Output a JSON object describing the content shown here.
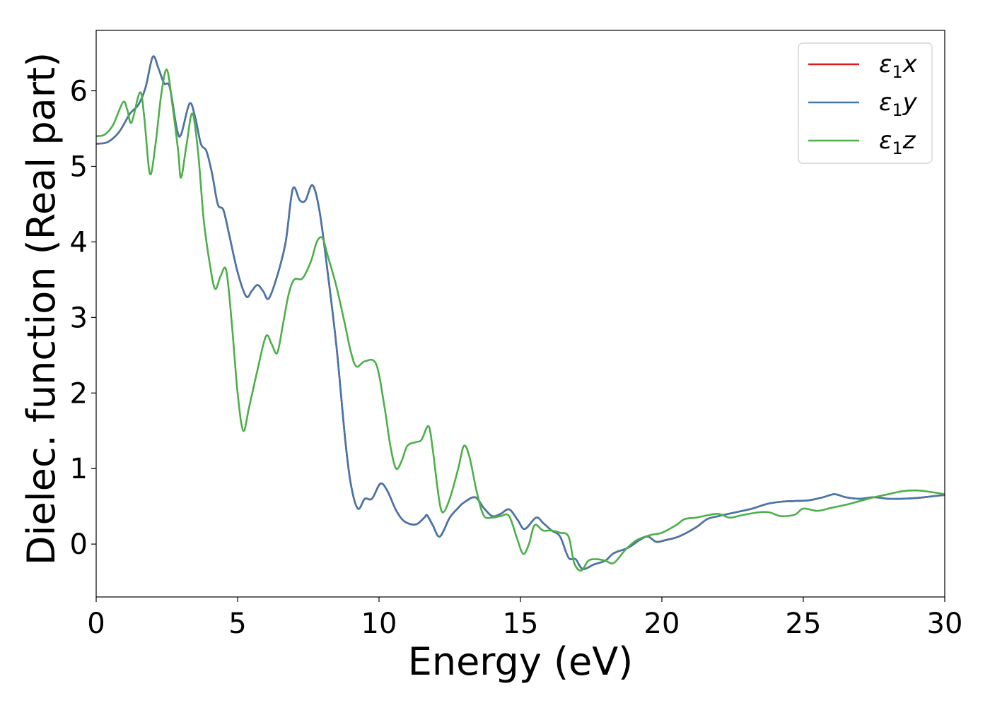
{
  "chart_data": {
    "type": "line",
    "title": "",
    "xlabel": "Energy (eV)",
    "ylabel": "Dielec. function (Real part)",
    "xlim": [
      0,
      30
    ],
    "ylim": [
      -0.7,
      6.8
    ],
    "xticks": [
      0,
      5,
      10,
      15,
      20,
      25,
      30
    ],
    "yticks": [
      0,
      1,
      2,
      3,
      4,
      5,
      6
    ],
    "grid": false,
    "legend_position": "top-right",
    "series": [
      {
        "name": "ε1x",
        "legend_base": "ε",
        "legend_sub": "1",
        "legend_var": "x",
        "color": "#e41a1c",
        "points": [
          [
            0,
            5.3
          ],
          [
            0.4,
            5.32
          ],
          [
            0.8,
            5.45
          ],
          [
            1.2,
            5.7
          ],
          [
            1.5,
            5.82
          ],
          [
            1.75,
            6.05
          ],
          [
            2.0,
            6.45
          ],
          [
            2.2,
            6.3
          ],
          [
            2.4,
            6.1
          ],
          [
            2.6,
            6.05
          ],
          [
            2.85,
            5.5
          ],
          [
            3.0,
            5.42
          ],
          [
            3.3,
            5.83
          ],
          [
            3.5,
            5.65
          ],
          [
            3.7,
            5.3
          ],
          [
            3.9,
            5.2
          ],
          [
            4.1,
            4.9
          ],
          [
            4.3,
            4.5
          ],
          [
            4.5,
            4.42
          ],
          [
            4.7,
            4.1
          ],
          [
            5.0,
            3.6
          ],
          [
            5.3,
            3.28
          ],
          [
            5.5,
            3.35
          ],
          [
            5.7,
            3.43
          ],
          [
            5.9,
            3.35
          ],
          [
            6.1,
            3.25
          ],
          [
            6.4,
            3.55
          ],
          [
            6.7,
            4.0
          ],
          [
            6.95,
            4.7
          ],
          [
            7.2,
            4.55
          ],
          [
            7.4,
            4.55
          ],
          [
            7.65,
            4.75
          ],
          [
            7.9,
            4.4
          ],
          [
            8.2,
            3.55
          ],
          [
            8.5,
            2.6
          ],
          [
            8.8,
            1.4
          ],
          [
            9.0,
            0.8
          ],
          [
            9.25,
            0.47
          ],
          [
            9.5,
            0.6
          ],
          [
            9.75,
            0.6
          ],
          [
            10.05,
            0.8
          ],
          [
            10.3,
            0.7
          ],
          [
            10.6,
            0.45
          ],
          [
            10.9,
            0.3
          ],
          [
            11.3,
            0.26
          ],
          [
            11.6,
            0.35
          ],
          [
            11.7,
            0.38
          ],
          [
            11.9,
            0.25
          ],
          [
            12.15,
            0.1
          ],
          [
            12.5,
            0.35
          ],
          [
            12.8,
            0.48
          ],
          [
            13.0,
            0.55
          ],
          [
            13.4,
            0.62
          ],
          [
            13.7,
            0.48
          ],
          [
            14.0,
            0.37
          ],
          [
            14.3,
            0.4
          ],
          [
            14.6,
            0.46
          ],
          [
            14.9,
            0.32
          ],
          [
            15.15,
            0.2
          ],
          [
            15.55,
            0.35
          ],
          [
            15.8,
            0.28
          ],
          [
            16.1,
            0.18
          ],
          [
            16.4,
            0.1
          ],
          [
            16.7,
            -0.18
          ],
          [
            16.95,
            -0.2
          ],
          [
            17.2,
            -0.33
          ],
          [
            17.6,
            -0.27
          ],
          [
            18.0,
            -0.22
          ],
          [
            18.3,
            -0.12
          ],
          [
            18.8,
            -0.05
          ],
          [
            19.2,
            0.05
          ],
          [
            19.5,
            0.1
          ],
          [
            19.8,
            0.03
          ],
          [
            20.1,
            0.05
          ],
          [
            20.6,
            0.1
          ],
          [
            21.2,
            0.22
          ],
          [
            21.6,
            0.33
          ],
          [
            22.0,
            0.37
          ],
          [
            22.6,
            0.42
          ],
          [
            23.2,
            0.47
          ],
          [
            23.7,
            0.53
          ],
          [
            24.2,
            0.56
          ],
          [
            24.7,
            0.57
          ],
          [
            25.2,
            0.58
          ],
          [
            25.7,
            0.62
          ],
          [
            26.1,
            0.66
          ],
          [
            26.5,
            0.62
          ],
          [
            27.0,
            0.6
          ],
          [
            27.5,
            0.62
          ],
          [
            28.0,
            0.6
          ],
          [
            28.5,
            0.6
          ],
          [
            29.0,
            0.61
          ],
          [
            29.5,
            0.63
          ],
          [
            30,
            0.65
          ]
        ]
      },
      {
        "name": "ε1y",
        "legend_base": "ε",
        "legend_sub": "1",
        "legend_var": "y",
        "color": "#4477aa",
        "points": [
          [
            0,
            5.3
          ],
          [
            0.4,
            5.32
          ],
          [
            0.8,
            5.45
          ],
          [
            1.2,
            5.7
          ],
          [
            1.5,
            5.82
          ],
          [
            1.75,
            6.05
          ],
          [
            2.0,
            6.45
          ],
          [
            2.2,
            6.3
          ],
          [
            2.4,
            6.1
          ],
          [
            2.6,
            6.05
          ],
          [
            2.85,
            5.5
          ],
          [
            3.0,
            5.42
          ],
          [
            3.3,
            5.83
          ],
          [
            3.5,
            5.65
          ],
          [
            3.7,
            5.3
          ],
          [
            3.9,
            5.2
          ],
          [
            4.1,
            4.9
          ],
          [
            4.3,
            4.5
          ],
          [
            4.5,
            4.42
          ],
          [
            4.7,
            4.1
          ],
          [
            5.0,
            3.6
          ],
          [
            5.3,
            3.28
          ],
          [
            5.5,
            3.35
          ],
          [
            5.7,
            3.43
          ],
          [
            5.9,
            3.35
          ],
          [
            6.1,
            3.25
          ],
          [
            6.4,
            3.55
          ],
          [
            6.7,
            4.0
          ],
          [
            6.95,
            4.7
          ],
          [
            7.2,
            4.55
          ],
          [
            7.4,
            4.55
          ],
          [
            7.65,
            4.75
          ],
          [
            7.9,
            4.4
          ],
          [
            8.2,
            3.55
          ],
          [
            8.5,
            2.6
          ],
          [
            8.8,
            1.4
          ],
          [
            9.0,
            0.8
          ],
          [
            9.25,
            0.47
          ],
          [
            9.5,
            0.6
          ],
          [
            9.75,
            0.6
          ],
          [
            10.05,
            0.8
          ],
          [
            10.3,
            0.7
          ],
          [
            10.6,
            0.45
          ],
          [
            10.9,
            0.3
          ],
          [
            11.3,
            0.26
          ],
          [
            11.6,
            0.35
          ],
          [
            11.7,
            0.38
          ],
          [
            11.9,
            0.25
          ],
          [
            12.15,
            0.1
          ],
          [
            12.5,
            0.35
          ],
          [
            12.8,
            0.48
          ],
          [
            13.0,
            0.55
          ],
          [
            13.4,
            0.62
          ],
          [
            13.7,
            0.48
          ],
          [
            14.0,
            0.37
          ],
          [
            14.3,
            0.4
          ],
          [
            14.6,
            0.46
          ],
          [
            14.9,
            0.32
          ],
          [
            15.15,
            0.2
          ],
          [
            15.55,
            0.35
          ],
          [
            15.8,
            0.28
          ],
          [
            16.1,
            0.18
          ],
          [
            16.4,
            0.1
          ],
          [
            16.7,
            -0.18
          ],
          [
            16.95,
            -0.2
          ],
          [
            17.2,
            -0.33
          ],
          [
            17.6,
            -0.27
          ],
          [
            18.0,
            -0.22
          ],
          [
            18.3,
            -0.12
          ],
          [
            18.8,
            -0.05
          ],
          [
            19.2,
            0.05
          ],
          [
            19.5,
            0.1
          ],
          [
            19.8,
            0.03
          ],
          [
            20.1,
            0.05
          ],
          [
            20.6,
            0.1
          ],
          [
            21.2,
            0.22
          ],
          [
            21.6,
            0.33
          ],
          [
            22.0,
            0.37
          ],
          [
            22.6,
            0.42
          ],
          [
            23.2,
            0.47
          ],
          [
            23.7,
            0.53
          ],
          [
            24.2,
            0.56
          ],
          [
            24.7,
            0.57
          ],
          [
            25.2,
            0.58
          ],
          [
            25.7,
            0.62
          ],
          [
            26.1,
            0.66
          ],
          [
            26.5,
            0.62
          ],
          [
            27.0,
            0.6
          ],
          [
            27.5,
            0.62
          ],
          [
            28.0,
            0.6
          ],
          [
            28.5,
            0.6
          ],
          [
            29.0,
            0.61
          ],
          [
            29.5,
            0.63
          ],
          [
            30,
            0.65
          ]
        ]
      },
      {
        "name": "ε1z",
        "legend_base": "ε",
        "legend_sub": "1",
        "legend_var": "z",
        "color": "#4daf4a",
        "points": [
          [
            0,
            5.4
          ],
          [
            0.3,
            5.42
          ],
          [
            0.6,
            5.55
          ],
          [
            0.95,
            5.85
          ],
          [
            1.1,
            5.75
          ],
          [
            1.25,
            5.58
          ],
          [
            1.55,
            5.98
          ],
          [
            1.7,
            5.65
          ],
          [
            1.9,
            4.9
          ],
          [
            2.1,
            5.3
          ],
          [
            2.3,
            5.95
          ],
          [
            2.5,
            6.28
          ],
          [
            2.7,
            5.8
          ],
          [
            2.9,
            5.2
          ],
          [
            3.0,
            4.85
          ],
          [
            3.2,
            5.3
          ],
          [
            3.4,
            5.7
          ],
          [
            3.6,
            5.2
          ],
          [
            3.8,
            4.3
          ],
          [
            4.0,
            3.75
          ],
          [
            4.2,
            3.38
          ],
          [
            4.4,
            3.55
          ],
          [
            4.6,
            3.62
          ],
          [
            4.8,
            2.9
          ],
          [
            5.0,
            2.0
          ],
          [
            5.2,
            1.5
          ],
          [
            5.4,
            1.8
          ],
          [
            5.7,
            2.3
          ],
          [
            6.0,
            2.75
          ],
          [
            6.2,
            2.65
          ],
          [
            6.4,
            2.53
          ],
          [
            6.6,
            2.9
          ],
          [
            6.8,
            3.3
          ],
          [
            7.0,
            3.5
          ],
          [
            7.3,
            3.52
          ],
          [
            7.6,
            3.75
          ],
          [
            7.8,
            4.0
          ],
          [
            8.0,
            4.05
          ],
          [
            8.2,
            3.8
          ],
          [
            8.5,
            3.4
          ],
          [
            8.8,
            2.9
          ],
          [
            9.0,
            2.55
          ],
          [
            9.2,
            2.35
          ],
          [
            9.5,
            2.42
          ],
          [
            9.9,
            2.38
          ],
          [
            10.2,
            1.8
          ],
          [
            10.4,
            1.3
          ],
          [
            10.6,
            1.0
          ],
          [
            10.8,
            1.1
          ],
          [
            11.0,
            1.3
          ],
          [
            11.3,
            1.35
          ],
          [
            11.5,
            1.38
          ],
          [
            11.75,
            1.56
          ],
          [
            11.9,
            1.25
          ],
          [
            12.1,
            0.65
          ],
          [
            12.25,
            0.42
          ],
          [
            12.5,
            0.6
          ],
          [
            12.8,
            1.0
          ],
          [
            13.0,
            1.3
          ],
          [
            13.2,
            1.15
          ],
          [
            13.45,
            0.7
          ],
          [
            13.7,
            0.38
          ],
          [
            14.0,
            0.35
          ],
          [
            14.3,
            0.37
          ],
          [
            14.6,
            0.37
          ],
          [
            14.9,
            0.05
          ],
          [
            15.1,
            -0.13
          ],
          [
            15.3,
            0.0
          ],
          [
            15.5,
            0.25
          ],
          [
            15.8,
            0.18
          ],
          [
            16.1,
            0.18
          ],
          [
            16.4,
            0.15
          ],
          [
            16.7,
            0.1
          ],
          [
            16.9,
            -0.25
          ],
          [
            17.15,
            -0.35
          ],
          [
            17.4,
            -0.22
          ],
          [
            17.7,
            -0.2
          ],
          [
            18.0,
            -0.22
          ],
          [
            18.3,
            -0.25
          ],
          [
            18.7,
            -0.08
          ],
          [
            19.1,
            0.05
          ],
          [
            19.6,
            0.12
          ],
          [
            20.0,
            0.15
          ],
          [
            20.5,
            0.25
          ],
          [
            20.8,
            0.33
          ],
          [
            21.2,
            0.35
          ],
          [
            21.6,
            0.38
          ],
          [
            22.0,
            0.4
          ],
          [
            22.4,
            0.35
          ],
          [
            22.8,
            0.38
          ],
          [
            23.4,
            0.42
          ],
          [
            23.8,
            0.42
          ],
          [
            24.2,
            0.37
          ],
          [
            24.7,
            0.39
          ],
          [
            25.0,
            0.47
          ],
          [
            25.5,
            0.44
          ],
          [
            26.0,
            0.48
          ],
          [
            26.5,
            0.52
          ],
          [
            27.0,
            0.57
          ],
          [
            27.5,
            0.62
          ],
          [
            28.0,
            0.66
          ],
          [
            28.5,
            0.7
          ],
          [
            29.0,
            0.71
          ],
          [
            29.5,
            0.69
          ],
          [
            30,
            0.66
          ]
        ]
      }
    ]
  }
}
